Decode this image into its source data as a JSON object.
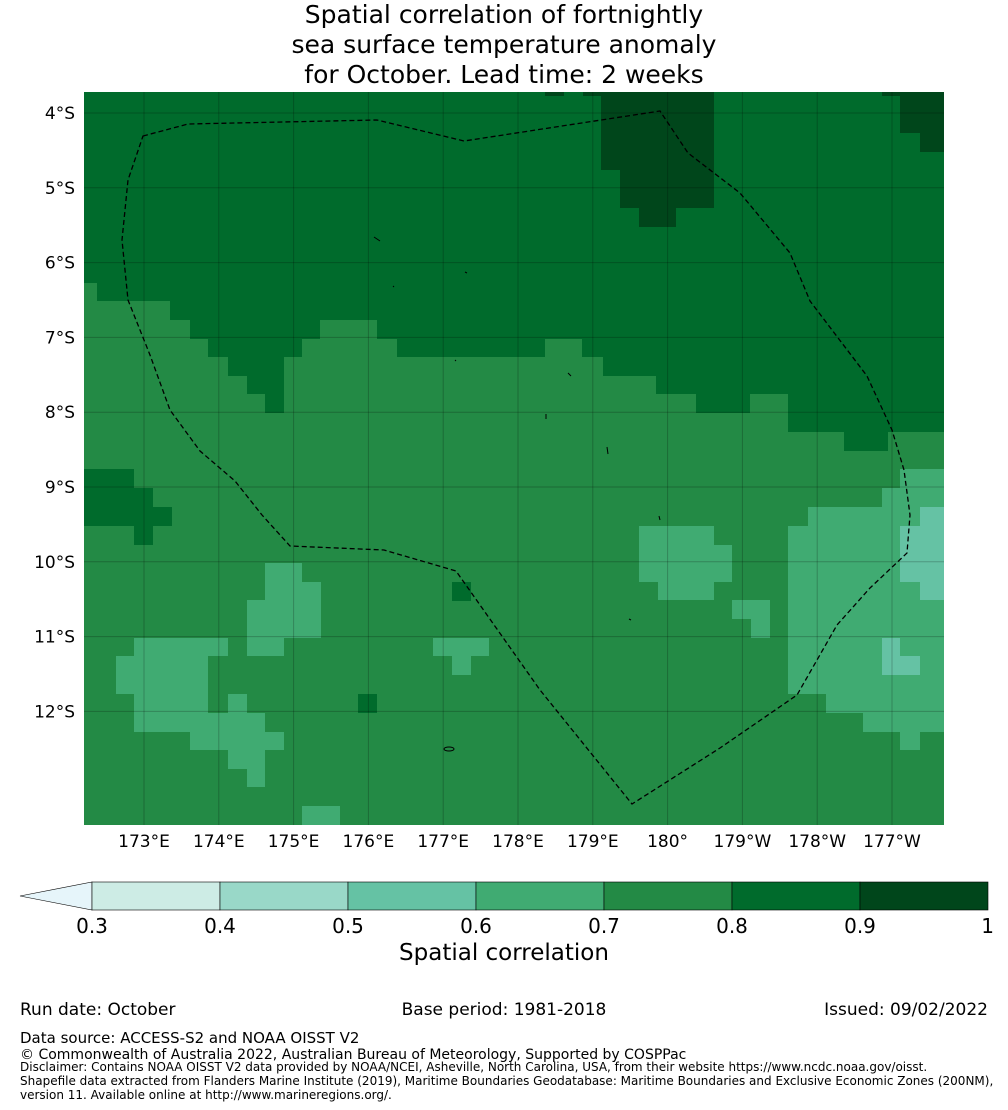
{
  "title_lines": [
    "Spatial correlation of fortnightly",
    "sea surface temperature anomaly",
    "for October. Lead time: 2 weeks"
  ],
  "lat_ticks": [
    "4°S",
    "5°S",
    "6°S",
    "7°S",
    "8°S",
    "9°S",
    "10°S",
    "11°S",
    "12°S"
  ],
  "lon_ticks": [
    "173°E",
    "174°E",
    "175°E",
    "176°E",
    "177°E",
    "178°E",
    "179°E",
    "180°",
    "179°W",
    "178°W",
    "177°W"
  ],
  "colorbar": {
    "label": "Spatial correlation",
    "ticks": [
      "0.3",
      "0.4",
      "0.5",
      "0.6",
      "0.7",
      "0.8",
      "0.9",
      "1"
    ],
    "colors": [
      "#cdece5",
      "#99d8c8",
      "#65c2a4",
      "#40ab72",
      "#238a45",
      "#006b2c",
      "#00461b"
    ],
    "under_color": "#e6f5fa"
  },
  "footer": {
    "run_date": "Run date: October",
    "base_period": "Base period: 1981-2018",
    "issued": "Issued: 09/02/2022",
    "data_source": "Data source: ACCESS-S2 and NOAA OISST V2",
    "copyright": "© Commonwealth of Australia 2022, Australian Bureau of Meteorology, Supported by COSPPac",
    "disclaimer_1": "Disclaimer: Contains NOAA OISST V2 data provided by NOAA/NCEI, Asheville, North Carolina, USA, from their website https://www.ncdc.noaa.gov/oisst.",
    "disclaimer_2": "Shapefile data extracted from Flanders Marine Institute (2019), Maritime Boundaries Geodatabase: Maritime Boundaries and Exclusive Economic Zones (200NM),",
    "disclaimer_3": "version 11. Available online at http://www.marineregions.org/."
  }
}
